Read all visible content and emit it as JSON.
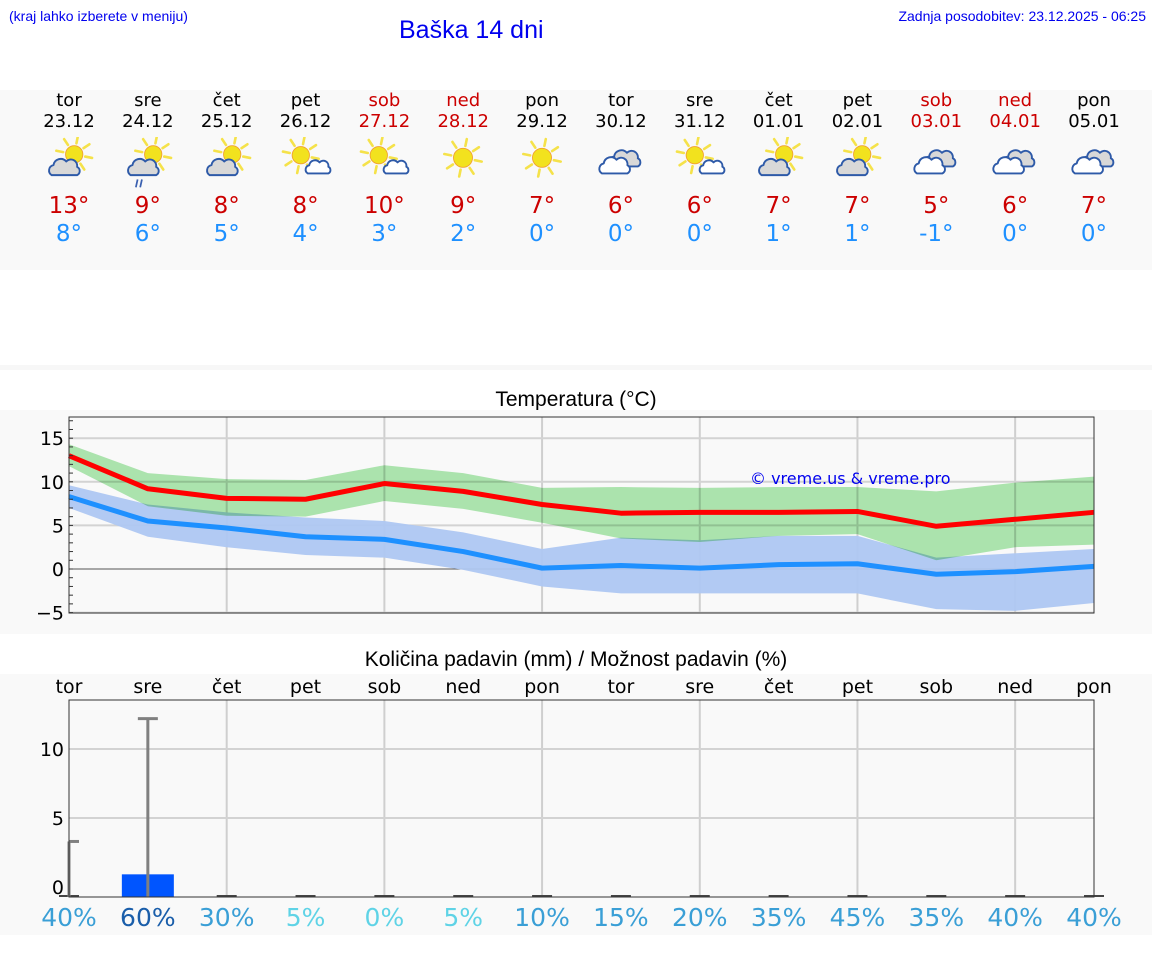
{
  "header": {
    "menu_hint": "(kraj lahko izberete v meniju)",
    "title": "Baška 14 dni",
    "last_update": "Zadnja posodobitev: 23.12.2025 - 06:25"
  },
  "colors": {
    "link_blue": "#0000ee",
    "max_temp": "#cc0000",
    "min_temp": "#1e90ff",
    "weekend": "#cc0000",
    "max_line": "#ff0000",
    "min_line": "#1e90ff",
    "max_band": "#abe8ad",
    "min_band": "#aec7f2",
    "overlap_band": "#7fc8a9",
    "precip_bar": "#0055ff"
  },
  "days": [
    {
      "name": "tor",
      "date": "23.12",
      "weekend": false,
      "icon": "partly-cloudy-icon",
      "max": "13°",
      "min": "8°"
    },
    {
      "name": "sre",
      "date": "24.12",
      "weekend": false,
      "icon": "partly-cloudy-rain-icon",
      "max": "9°",
      "min": "6°"
    },
    {
      "name": "čet",
      "date": "25.12",
      "weekend": false,
      "icon": "partly-cloudy-icon",
      "max": "8°",
      "min": "5°"
    },
    {
      "name": "pet",
      "date": "26.12",
      "weekend": false,
      "icon": "mostly-sunny-icon",
      "max": "8°",
      "min": "4°"
    },
    {
      "name": "sob",
      "date": "27.12",
      "weekend": true,
      "icon": "mostly-sunny-icon",
      "max": "10°",
      "min": "3°"
    },
    {
      "name": "ned",
      "date": "28.12",
      "weekend": true,
      "icon": "sunny-icon",
      "max": "9°",
      "min": "2°"
    },
    {
      "name": "pon",
      "date": "29.12",
      "weekend": false,
      "icon": "sunny-icon",
      "max": "7°",
      "min": "0°"
    },
    {
      "name": "tor",
      "date": "30.12",
      "weekend": false,
      "icon": "cloudy-icon",
      "max": "6°",
      "min": "0°"
    },
    {
      "name": "sre",
      "date": "31.12",
      "weekend": false,
      "icon": "mostly-sunny-icon",
      "max": "6°",
      "min": "0°"
    },
    {
      "name": "čet",
      "date": "01.01",
      "weekend": false,
      "icon": "partly-cloudy-icon",
      "max": "7°",
      "min": "1°"
    },
    {
      "name": "pet",
      "date": "02.01",
      "weekend": false,
      "icon": "partly-cloudy-icon",
      "max": "7°",
      "min": "1°"
    },
    {
      "name": "sob",
      "date": "03.01",
      "weekend": true,
      "icon": "cloudy-icon",
      "max": "5°",
      "min": "-1°"
    },
    {
      "name": "ned",
      "date": "04.01",
      "weekend": true,
      "icon": "cloudy-icon",
      "max": "6°",
      "min": "0°"
    },
    {
      "name": "pon",
      "date": "05.01",
      "weekend": false,
      "icon": "cloudy-icon",
      "max": "7°",
      "min": "0°"
    }
  ],
  "temp_chart": {
    "title": "Temperatura (°C)",
    "watermark": "© vreme.us & vreme.pro",
    "yticks": [
      "15",
      "10",
      "5",
      "0",
      "−5"
    ]
  },
  "precip_chart": {
    "title": "Količina padavin (mm) / Možnost padavin (%)",
    "yticks": [
      "10",
      "5",
      "0"
    ],
    "day_labels": [
      "tor",
      "sre",
      "čet",
      "pet",
      "sob",
      "ned",
      "pon",
      "tor",
      "sre",
      "čet",
      "pet",
      "sob",
      "ned",
      "pon"
    ],
    "chances": [
      "40%",
      "60%",
      "30%",
      "5%",
      "0%",
      "5%",
      "10%",
      "15%",
      "20%",
      "35%",
      "45%",
      "35%",
      "40%",
      "40%"
    ]
  },
  "chart_data": [
    {
      "type": "line",
      "title": "Temperatura (°C)",
      "xlabel": "",
      "ylabel": "°C",
      "ylim": [
        -5.5,
        17.5
      ],
      "grid": true,
      "categories": [
        "23.12",
        "24.12",
        "25.12",
        "26.12",
        "27.12",
        "28.12",
        "29.12",
        "30.12",
        "31.12",
        "01.01",
        "02.01",
        "03.01",
        "04.01",
        "05.01"
      ],
      "series": [
        {
          "name": "Max temperature",
          "color": "#ff0000",
          "values": [
            13.0,
            9.2,
            8.1,
            8.0,
            9.8,
            8.9,
            7.4,
            6.4,
            6.5,
            6.5,
            6.6,
            4.9,
            5.7,
            6.5
          ]
        },
        {
          "name": "Max temperature range low",
          "values": [
            11.8,
            7.2,
            6.1,
            6.0,
            7.8,
            6.9,
            5.3,
            3.5,
            3.1,
            3.8,
            4.0,
            1.0,
            2.5,
            2.8
          ]
        },
        {
          "name": "Max temperature range high",
          "values": [
            14.3,
            11.0,
            10.3,
            10.2,
            11.9,
            11.0,
            9.3,
            9.4,
            9.3,
            9.4,
            9.4,
            8.9,
            9.9,
            10.6
          ]
        },
        {
          "name": "Min temperature",
          "color": "#1e90ff",
          "values": [
            8.3,
            5.5,
            4.7,
            3.7,
            3.4,
            2.0,
            0.1,
            0.4,
            0.1,
            0.5,
            0.6,
            -0.6,
            -0.3,
            0.3
          ]
        },
        {
          "name": "Min temperature range low",
          "values": [
            7.0,
            3.7,
            2.5,
            1.6,
            1.3,
            -0.1,
            -2.0,
            -2.8,
            -2.8,
            -2.8,
            -2.8,
            -4.6,
            -4.8,
            -3.9
          ]
        },
        {
          "name": "Min temperature range high",
          "values": [
            9.6,
            7.4,
            6.5,
            5.9,
            5.5,
            4.2,
            2.3,
            3.6,
            3.3,
            3.8,
            3.8,
            1.3,
            1.8,
            2.3
          ]
        }
      ],
      "annotations": [
        "© vreme.us & vreme.pro"
      ]
    },
    {
      "type": "bar",
      "title": "Količina padavin (mm) / Možnost padavin (%)",
      "xlabel": "",
      "ylabel": "mm",
      "ylim": [
        -0.7,
        13.5
      ],
      "grid": true,
      "categories": [
        "tor",
        "sre",
        "čet",
        "pet",
        "sob",
        "ned",
        "pon",
        "tor",
        "sre",
        "čet",
        "pet",
        "sob",
        "ned",
        "pon"
      ],
      "series": [
        {
          "name": "Precipitation (mm)",
          "color": "#0055ff",
          "values": [
            0.0,
            0.7,
            0,
            0,
            0,
            0,
            0,
            0,
            0,
            0,
            0,
            0,
            0,
            0
          ]
        },
        {
          "name": "Precipitation max range (mm)",
          "values": [
            3.3,
            12.2,
            0,
            0,
            0,
            0,
            0,
            0,
            0,
            0,
            0,
            0,
            0,
            0
          ]
        },
        {
          "name": "Chance of precipitation (%)",
          "values": [
            40,
            60,
            30,
            5,
            0,
            5,
            10,
            15,
            20,
            35,
            45,
            35,
            40,
            40
          ]
        }
      ]
    }
  ]
}
